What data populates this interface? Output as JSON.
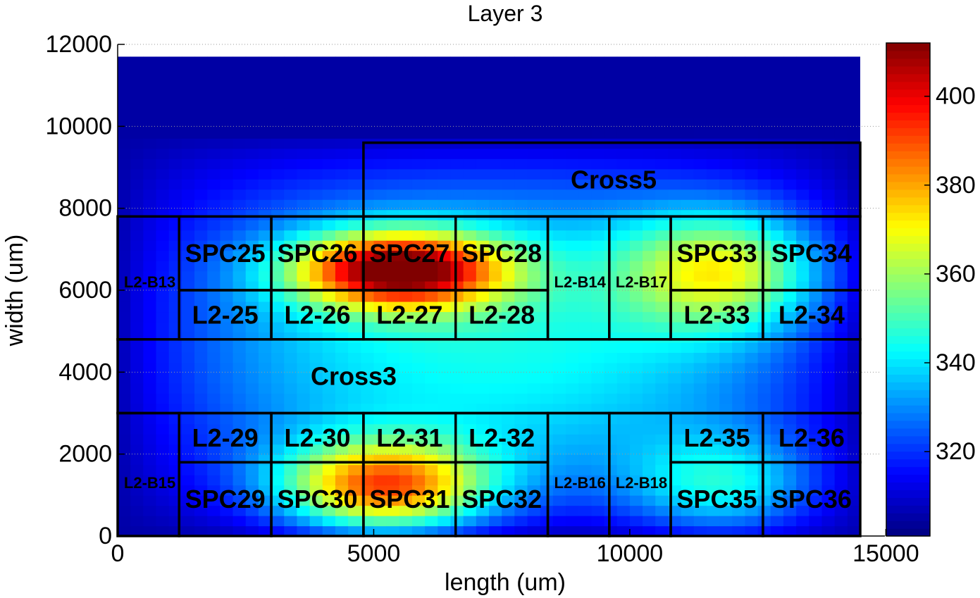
{
  "chart_data": {
    "type": "heatmap",
    "title": "Layer 3",
    "xlabel": "length (um)",
    "ylabel": "width (um)",
    "xlim": [
      0,
      15000
    ],
    "ylim": [
      0,
      12000
    ],
    "x_ticks": [
      0,
      5000,
      10000,
      15000
    ],
    "y_ticks": [
      0,
      2000,
      4000,
      6000,
      8000,
      10000,
      12000
    ],
    "data_extent": {
      "x": [
        0,
        14500
      ],
      "y": [
        0,
        11700
      ]
    },
    "grid_cells": {
      "nx": 58,
      "ny": 47
    },
    "colormap": "jet",
    "colorbar": {
      "range": [
        301,
        412
      ],
      "ticks": [
        320,
        340,
        360,
        380,
        400
      ]
    },
    "hotspots": [
      {
        "x": 5500,
        "y": 6500,
        "sx": 2000,
        "sy": 900,
        "amp": 95
      },
      {
        "x": 5200,
        "y": 1200,
        "sx": 2000,
        "sy": 1100,
        "amp": 78
      },
      {
        "x": 11800,
        "y": 6500,
        "sx": 1900,
        "sy": 1400,
        "amp": 48
      },
      {
        "x": 11800,
        "y": 1200,
        "sx": 1800,
        "sy": 1200,
        "amp": 32
      }
    ],
    "regions": [
      {
        "label": "Cross5",
        "x0": 4800,
        "x1": 14500,
        "y0": 7800,
        "y1": 9600
      },
      {
        "label": "Cross3",
        "x0": 0,
        "x1": 14500,
        "y0": 3000,
        "y1": 4800
      },
      {
        "label": "L2-B13",
        "x0": 0,
        "x1": 1200,
        "y0": 4800,
        "y1": 7800
      },
      {
        "label": "SPC25",
        "x0": 1200,
        "x1": 3000,
        "y0": 6000,
        "y1": 7800
      },
      {
        "label": "SPC26",
        "x0": 3000,
        "x1": 4800,
        "y0": 6000,
        "y1": 7800
      },
      {
        "label": "SPC27",
        "x0": 4800,
        "x1": 6600,
        "y0": 6000,
        "y1": 7800
      },
      {
        "label": "SPC28",
        "x0": 6600,
        "x1": 8400,
        "y0": 6000,
        "y1": 7800
      },
      {
        "label": "L2-25",
        "x0": 1200,
        "x1": 3000,
        "y0": 4800,
        "y1": 6000
      },
      {
        "label": "L2-26",
        "x0": 3000,
        "x1": 4800,
        "y0": 4800,
        "y1": 6000
      },
      {
        "label": "L2-27",
        "x0": 4800,
        "x1": 6600,
        "y0": 4800,
        "y1": 6000
      },
      {
        "label": "L2-28",
        "x0": 6600,
        "x1": 8400,
        "y0": 4800,
        "y1": 6000
      },
      {
        "label": "L2-B14",
        "x0": 8400,
        "x1": 9600,
        "y0": 4800,
        "y1": 7800
      },
      {
        "label": "L2-B17",
        "x0": 9600,
        "x1": 10800,
        "y0": 4800,
        "y1": 7800
      },
      {
        "label": "SPC33",
        "x0": 10800,
        "x1": 12600,
        "y0": 6000,
        "y1": 7800
      },
      {
        "label": "SPC34",
        "x0": 12600,
        "x1": 14500,
        "y0": 6000,
        "y1": 7800
      },
      {
        "label": "L2-33",
        "x0": 10800,
        "x1": 12600,
        "y0": 4800,
        "y1": 6000
      },
      {
        "label": "L2-34",
        "x0": 12600,
        "x1": 14500,
        "y0": 4800,
        "y1": 6000
      },
      {
        "label": "L2-B15",
        "x0": 0,
        "x1": 1200,
        "y0": 0,
        "y1": 3000
      },
      {
        "label": "L2-29",
        "x0": 1200,
        "x1": 3000,
        "y0": 1800,
        "y1": 3000
      },
      {
        "label": "L2-30",
        "x0": 3000,
        "x1": 4800,
        "y0": 1800,
        "y1": 3000
      },
      {
        "label": "L2-31",
        "x0": 4800,
        "x1": 6600,
        "y0": 1800,
        "y1": 3000
      },
      {
        "label": "L2-32",
        "x0": 6600,
        "x1": 8400,
        "y0": 1800,
        "y1": 3000
      },
      {
        "label": "SPC29",
        "x0": 1200,
        "x1": 3000,
        "y0": 0,
        "y1": 1800
      },
      {
        "label": "SPC30",
        "x0": 3000,
        "x1": 4800,
        "y0": 0,
        "y1": 1800
      },
      {
        "label": "SPC31",
        "x0": 4800,
        "x1": 6600,
        "y0": 0,
        "y1": 1800
      },
      {
        "label": "SPC32",
        "x0": 6600,
        "x1": 8400,
        "y0": 0,
        "y1": 1800
      },
      {
        "label": "L2-B16",
        "x0": 8400,
        "x1": 9600,
        "y0": 0,
        "y1": 3000
      },
      {
        "label": "L2-B18",
        "x0": 9600,
        "x1": 10800,
        "y0": 0,
        "y1": 3000
      },
      {
        "label": "L2-35",
        "x0": 10800,
        "x1": 12600,
        "y0": 1800,
        "y1": 3000
      },
      {
        "label": "L2-36",
        "x0": 12600,
        "x1": 14500,
        "y0": 1800,
        "y1": 3000
      },
      {
        "label": "SPC35",
        "x0": 10800,
        "x1": 12600,
        "y0": 0,
        "y1": 1800
      },
      {
        "label": "SPC36",
        "x0": 12600,
        "x1": 14500,
        "y0": 0,
        "y1": 1800
      }
    ]
  }
}
